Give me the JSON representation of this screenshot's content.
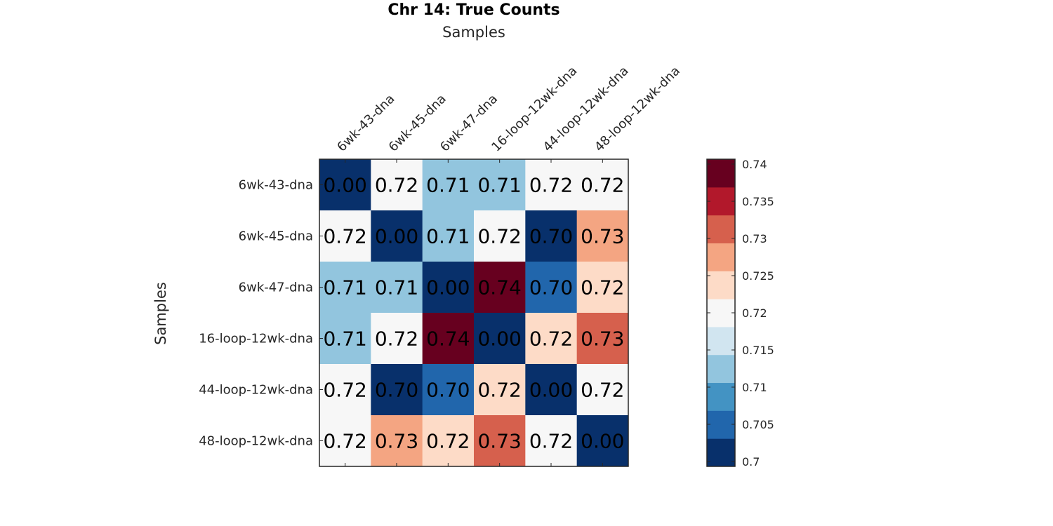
{
  "chart_data": {
    "type": "heatmap",
    "title": "Chr 14: True Counts",
    "xlabel": "Samples",
    "ylabel": "Samples",
    "categories": [
      "6wk-43-dna",
      "6wk-45-dna",
      "6wk-47-dna",
      "16-loop-12wk-dna",
      "44-loop-12wk-dna",
      "48-loop-12wk-dna"
    ],
    "values": [
      [
        0.0,
        0.72,
        0.71,
        0.71,
        0.72,
        0.72
      ],
      [
        0.72,
        0.0,
        0.71,
        0.72,
        0.7,
        0.73
      ],
      [
        0.71,
        0.71,
        0.0,
        0.74,
        0.7,
        0.72
      ],
      [
        0.71,
        0.72,
        0.74,
        0.0,
        0.72,
        0.73
      ],
      [
        0.72,
        0.7,
        0.7,
        0.72,
        0.0,
        0.72
      ],
      [
        0.72,
        0.73,
        0.72,
        0.73,
        0.72,
        0.0
      ]
    ],
    "cell_labels": [
      [
        "0.00",
        "0.72",
        "0.71",
        "0.71",
        "0.72",
        "0.72"
      ],
      [
        "0.72",
        "0.00",
        "0.71",
        "0.72",
        "0.70",
        "0.73"
      ],
      [
        "0.71",
        "0.71",
        "0.00",
        "0.74",
        "0.70",
        "0.72"
      ],
      [
        "0.71",
        "0.72",
        "0.74",
        "0.00",
        "0.72",
        "0.73"
      ],
      [
        "0.72",
        "0.70",
        "0.70",
        "0.72",
        "0.00",
        "0.72"
      ],
      [
        "0.72",
        "0.73",
        "0.72",
        "0.73",
        "0.72",
        "0.00"
      ]
    ],
    "cell_colors": [
      [
        "#08306b",
        "#f7f7f7",
        "#92c5de",
        "#92c5de",
        "#f7f7f7",
        "#f7f7f7"
      ],
      [
        "#f7f7f7",
        "#08306b",
        "#92c5de",
        "#f7f7f7",
        "#08306b",
        "#f4a582"
      ],
      [
        "#92c5de",
        "#92c5de",
        "#08306b",
        "#67001f",
        "#2166ac",
        "#fddbc7"
      ],
      [
        "#92c5de",
        "#f7f7f7",
        "#67001f",
        "#08306b",
        "#fddbc7",
        "#d6604d"
      ],
      [
        "#f7f7f7",
        "#08306b",
        "#2166ac",
        "#fddbc7",
        "#08306b",
        "#f7f7f7"
      ],
      [
        "#f7f7f7",
        "#f4a582",
        "#fddbc7",
        "#d6604d",
        "#f7f7f7",
        "#08306b"
      ]
    ],
    "colorbar": {
      "range": [
        0.7,
        0.74
      ],
      "tick_labels": [
        "0.7",
        "0.705",
        "0.71",
        "0.715",
        "0.72",
        "0.725",
        "0.73",
        "0.735",
        "0.74"
      ],
      "colors_bottom_to_top": [
        "#08306b",
        "#2166ac",
        "#4393c3",
        "#92c5de",
        "#d1e5f0",
        "#f7f7f7",
        "#fddbc7",
        "#f4a582",
        "#d6604d",
        "#b2182b",
        "#67001f"
      ],
      "placement": "right"
    }
  }
}
